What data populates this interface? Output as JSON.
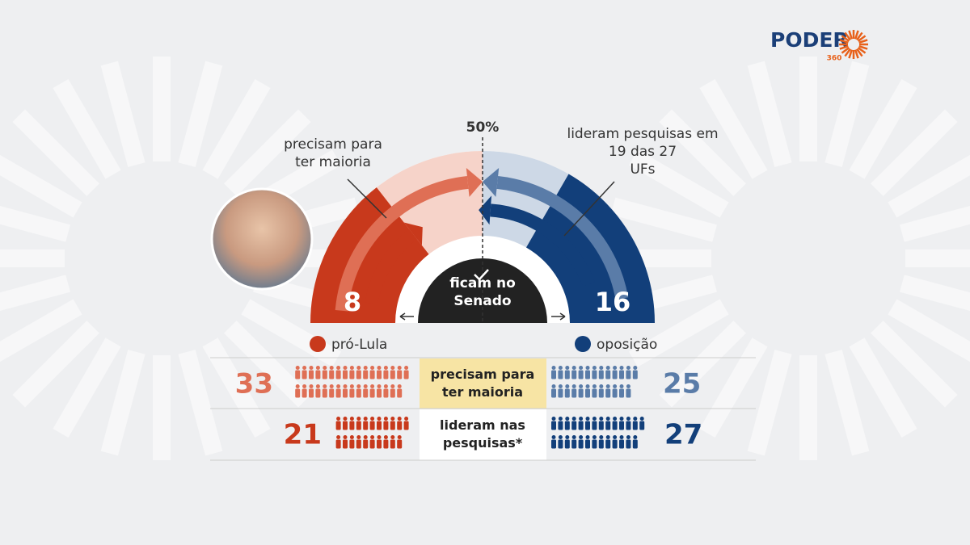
{
  "logo": {
    "name": "PODER",
    "number": "360"
  },
  "hemicycle": {
    "midline_label": "50%",
    "left_note": "precisam para ter maioria",
    "right_note": "lideram pesquisas em 19 das 27 UFs",
    "left_value": "8",
    "right_value": "16",
    "center_label": "ficam no Senado"
  },
  "legend": {
    "left": "pró-Lula",
    "right": "oposição"
  },
  "table": {
    "rows": [
      {
        "left": 33,
        "label": "precisam para ter maioria",
        "right": 25
      },
      {
        "left": 21,
        "label": "lideram nas pesquisas*",
        "right": 27
      }
    ]
  }
}
